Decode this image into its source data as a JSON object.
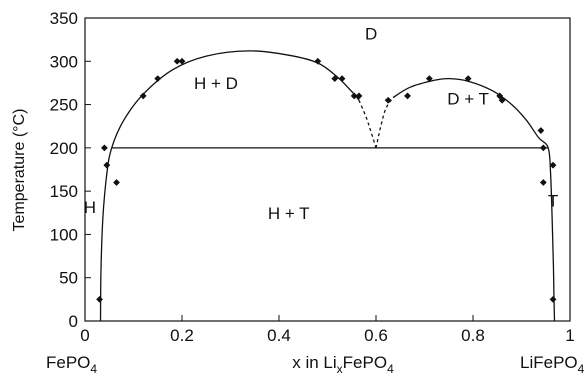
{
  "chart_data": {
    "type": "scatter",
    "title": "",
    "xlabel": "x in LixFePO4",
    "xlabel_parts": {
      "pre": "x in Li",
      "sub": "x",
      "post": "FePO",
      "sub2": "4"
    },
    "ylabel": "Temperature (°C)",
    "xlim": [
      0,
      1
    ],
    "ylim": [
      0,
      350
    ],
    "x_ticks": [
      0,
      0.2,
      0.4,
      0.6,
      0.8,
      1
    ],
    "x_tick_labels": [
      "0",
      "0.2",
      "0.4",
      "0.6",
      "0.8",
      "1"
    ],
    "y_ticks": [
      0,
      50,
      100,
      150,
      200,
      250,
      300,
      350
    ],
    "y_tick_labels": [
      "0",
      "50",
      "100",
      "150",
      "200",
      "250",
      "300",
      "350"
    ],
    "end_labels": {
      "left": {
        "main": "FePO",
        "sub": "4"
      },
      "right": {
        "main": "LiFePO",
        "sub": "4"
      }
    },
    "regions": [
      {
        "label": "H",
        "x": 0.01,
        "y": 125
      },
      {
        "label": "H + D",
        "x": 0.27,
        "y": 268
      },
      {
        "label": "D",
        "x": 0.59,
        "y": 325
      },
      {
        "label": "D + T",
        "x": 0.79,
        "y": 250
      },
      {
        "label": "H + T",
        "x": 0.42,
        "y": 118
      },
      {
        "label": "T",
        "x": 0.965,
        "y": 132
      }
    ],
    "eutectoid_line": {
      "x": [
        0.055,
        0.955
      ],
      "y": 200,
      "x_eutectoid": 0.6
    },
    "points": [
      {
        "x": 0.03,
        "y": 25
      },
      {
        "x": 0.04,
        "y": 200
      },
      {
        "x": 0.045,
        "y": 180
      },
      {
        "x": 0.065,
        "y": 160
      },
      {
        "x": 0.12,
        "y": 260
      },
      {
        "x": 0.15,
        "y": 280
      },
      {
        "x": 0.19,
        "y": 300
      },
      {
        "x": 0.2,
        "y": 300
      },
      {
        "x": 0.48,
        "y": 300
      },
      {
        "x": 0.515,
        "y": 280
      },
      {
        "x": 0.53,
        "y": 280
      },
      {
        "x": 0.555,
        "y": 260
      },
      {
        "x": 0.565,
        "y": 260
      },
      {
        "x": 0.625,
        "y": 255
      },
      {
        "x": 0.665,
        "y": 260
      },
      {
        "x": 0.71,
        "y": 280
      },
      {
        "x": 0.79,
        "y": 280
      },
      {
        "x": 0.855,
        "y": 260
      },
      {
        "x": 0.86,
        "y": 255
      },
      {
        "x": 0.94,
        "y": 220
      },
      {
        "x": 0.945,
        "y": 200
      },
      {
        "x": 0.945,
        "y": 160
      },
      {
        "x": 0.965,
        "y": 180
      },
      {
        "x": 0.965,
        "y": 25
      }
    ],
    "curves": [
      {
        "name": "left-solvus",
        "style": "solid",
        "points": [
          [
            0.032,
            0
          ],
          [
            0.033,
            60
          ],
          [
            0.037,
            120
          ],
          [
            0.045,
            170
          ],
          [
            0.055,
            200
          ],
          [
            0.08,
            232
          ],
          [
            0.12,
            262
          ],
          [
            0.18,
            290
          ],
          [
            0.25,
            306
          ],
          [
            0.34,
            312
          ],
          [
            0.42,
            307
          ],
          [
            0.48,
            298
          ],
          [
            0.52,
            282
          ],
          [
            0.55,
            265
          ],
          [
            0.565,
            255
          ]
        ]
      },
      {
        "name": "left-dashed",
        "style": "dashed",
        "points": [
          [
            0.565,
            255
          ],
          [
            0.58,
            235
          ],
          [
            0.59,
            218
          ],
          [
            0.6,
            200
          ]
        ]
      },
      {
        "name": "right-dashed",
        "style": "dashed",
        "points": [
          [
            0.6,
            200
          ],
          [
            0.61,
            225
          ],
          [
            0.62,
            245
          ],
          [
            0.635,
            258
          ]
        ]
      },
      {
        "name": "right-solvus",
        "style": "solid",
        "points": [
          [
            0.635,
            258
          ],
          [
            0.67,
            270
          ],
          [
            0.72,
            278
          ],
          [
            0.75,
            280
          ],
          [
            0.79,
            277
          ],
          [
            0.84,
            266
          ],
          [
            0.88,
            250
          ],
          [
            0.91,
            232
          ],
          [
            0.935,
            212
          ],
          [
            0.955,
            200
          ],
          [
            0.96,
            170
          ],
          [
            0.963,
            120
          ],
          [
            0.966,
            60
          ],
          [
            0.967,
            25
          ],
          [
            0.968,
            0
          ]
        ]
      }
    ]
  }
}
